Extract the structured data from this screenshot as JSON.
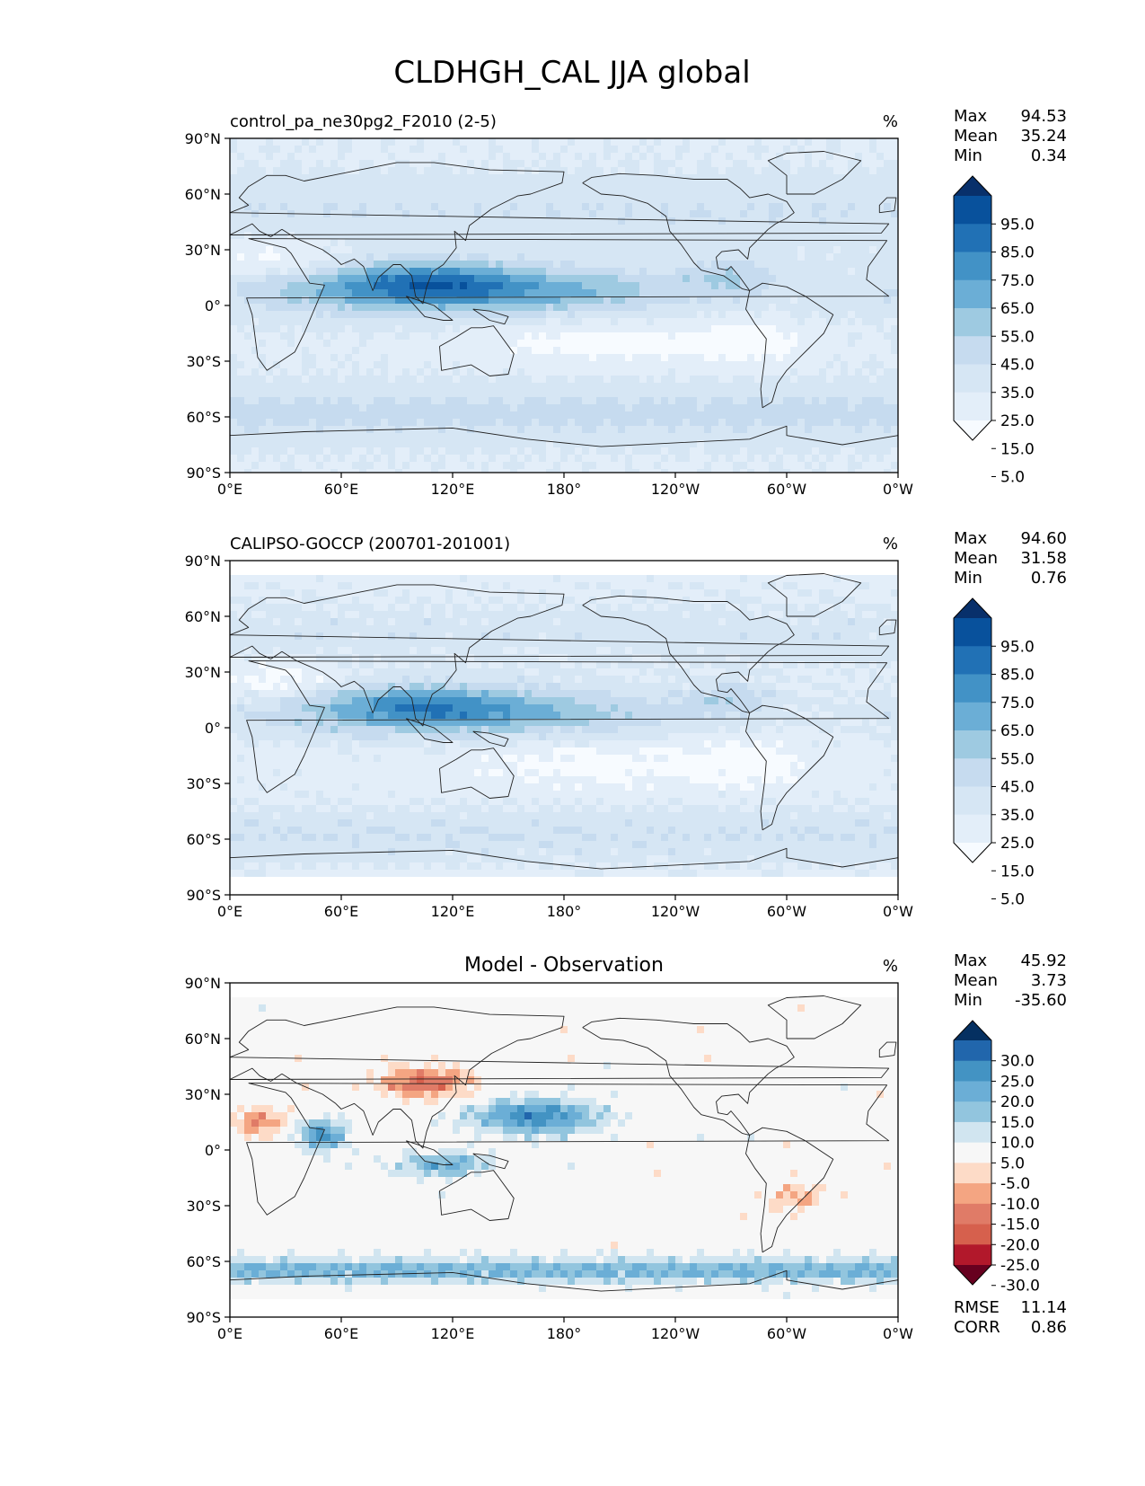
{
  "figure": {
    "title": "CLDHGH_CAL JJA global"
  },
  "axes": {
    "x_ticks": [
      "0°E",
      "60°E",
      "120°E",
      "180°",
      "120°W",
      "60°W",
      "0°W"
    ],
    "y_ticks": [
      "90°N",
      "60°N",
      "30°N",
      "0°",
      "30°S",
      "60°S",
      "90°S"
    ],
    "x_range": [
      0,
      360
    ],
    "y_range": [
      -90,
      90
    ]
  },
  "panels": [
    {
      "id": "test",
      "title_left": "control_pa_ne30pg2_F2010 (2-5)",
      "title_center": "",
      "units": "%",
      "stats": [
        {
          "label": "Max",
          "value": "94.53"
        },
        {
          "label": "Mean",
          "value": "35.24"
        },
        {
          "label": "Min",
          "value": "0.34"
        }
      ],
      "colorbar_labels": [
        "95.0",
        "85.0",
        "75.0",
        "65.0",
        "55.0",
        "45.0",
        "35.0",
        "25.0",
        "15.0",
        "5.0"
      ],
      "colorbar_colors": [
        "#08306b",
        "#08519c",
        "#2171b5",
        "#4292c6",
        "#6baed6",
        "#9ecae1",
        "#c6dbef",
        "#d6e6f4",
        "#e3eef9",
        "#f7fbff"
      ],
      "extra_stats": []
    },
    {
      "id": "reference",
      "title_left": "CALIPSO-GOCCP (200701-201001)",
      "title_center": "",
      "units": "%",
      "stats": [
        {
          "label": "Max",
          "value": "94.60"
        },
        {
          "label": "Mean",
          "value": "31.58"
        },
        {
          "label": "Min",
          "value": "0.76"
        }
      ],
      "colorbar_labels": [
        "95.0",
        "85.0",
        "75.0",
        "65.0",
        "55.0",
        "45.0",
        "35.0",
        "25.0",
        "15.0",
        "5.0"
      ],
      "colorbar_colors": [
        "#08306b",
        "#08519c",
        "#2171b5",
        "#4292c6",
        "#6baed6",
        "#9ecae1",
        "#c6dbef",
        "#d6e6f4",
        "#e3eef9",
        "#f7fbff"
      ],
      "extra_stats": []
    },
    {
      "id": "difference",
      "title_left": "",
      "title_center": "Model - Observation",
      "units": "%",
      "stats": [
        {
          "label": "Max",
          "value": "45.92"
        },
        {
          "label": "Mean",
          "value": "3.73"
        },
        {
          "label": "Min",
          "value": "-35.60"
        }
      ],
      "colorbar_labels": [
        "30.0",
        "25.0",
        "20.0",
        "15.0",
        "10.0",
        "5.0",
        "-5.0",
        "-10.0",
        "-15.0",
        "-20.0",
        "-25.0",
        "-30.0"
      ],
      "colorbar_colors": [
        "#053061",
        "#2166ac",
        "#4393c3",
        "#6baed6",
        "#92c5de",
        "#d1e5f0",
        "#f7f7f7",
        "#fddbc7",
        "#f4a582",
        "#e07b67",
        "#d6604d",
        "#b2182b",
        "#67001f"
      ],
      "extra_stats": [
        {
          "label": "RMSE",
          "value": "11.14"
        },
        {
          "label": "CORR",
          "value": "0.86"
        }
      ]
    }
  ],
  "map_data": {
    "type": "filled-contour-map",
    "projection": "PlateCarree",
    "central_longitude": 180,
    "variable": "CLDHGH_CAL",
    "season": "JJA",
    "region": "global"
  }
}
